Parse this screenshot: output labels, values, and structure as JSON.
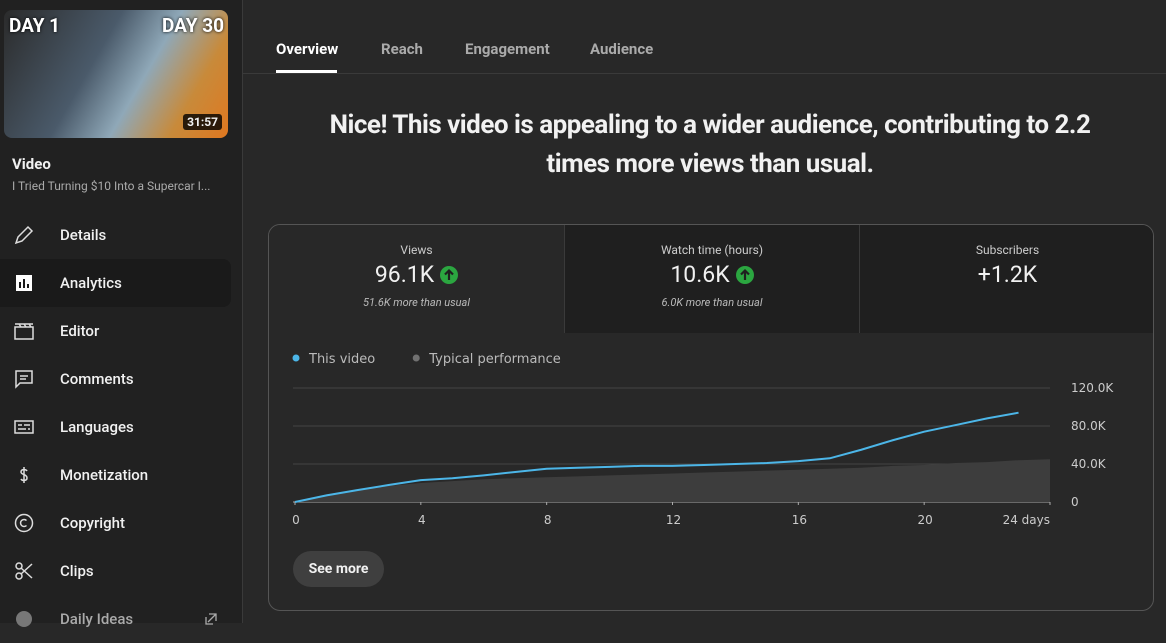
{
  "thumbnail": {
    "left_text": "DAY 1",
    "right_text": "DAY 30",
    "duration": "31:57"
  },
  "sidebar": {
    "label": "Video",
    "video_title": "I Tried Turning $10 Into a Supercar I...",
    "nav": [
      "Details",
      "Analytics",
      "Editor",
      "Comments",
      "Languages",
      "Monetization",
      "Copyright",
      "Clips",
      "Daily Ideas"
    ]
  },
  "tabs": [
    "Overview",
    "Reach",
    "Engagement",
    "Audience"
  ],
  "headline": "Nice! This video is appealing to a wider audience, contributing to 2.2 times more views than usual.",
  "metrics": [
    {
      "label": "Views",
      "value": "96.1K",
      "note": "51.6K more than usual"
    },
    {
      "label": "Watch time (hours)",
      "value": "10.6K",
      "note": "6.0K more than usual"
    },
    {
      "label": "Subscribers",
      "value": "+1.2K"
    }
  ],
  "chart_data": {
    "type": "line",
    "x": [
      0,
      1,
      2,
      3,
      4,
      5,
      6,
      7,
      8,
      9,
      10,
      11,
      12,
      13,
      14,
      15,
      16,
      17,
      18,
      19,
      20,
      21,
      22,
      23,
      24
    ],
    "series": [
      {
        "name": "This video",
        "color": "#4cb6e8",
        "values": [
          0,
          7000,
          12600,
          18000,
          23000,
          25000,
          28000,
          31600,
          35000,
          36000,
          37000,
          38000,
          38000,
          39000,
          40000,
          41000,
          43000,
          46000,
          55000,
          65000,
          74000,
          81000,
          88000,
          94000,
          null
        ]
      },
      {
        "name": "Typical performance",
        "color": "#717171",
        "fill": "#3d3d3d",
        "values": [
          0,
          8000,
          13000,
          17000,
          20000,
          22000,
          24000,
          25000,
          26000,
          27000,
          28000,
          29000,
          30000,
          31000,
          32000,
          33000,
          34000,
          35000,
          36000,
          38000,
          39000,
          41000,
          42000,
          44000,
          45000
        ]
      }
    ],
    "xlim": [
      0,
      24
    ],
    "xticks": [
      0,
      4,
      8,
      12,
      16,
      20,
      {
        "value": 24,
        "label": "24 days"
      }
    ],
    "ylim": [
      0,
      120000
    ],
    "yticks": [
      0,
      {
        "value": 40000,
        "label": "40.0K"
      },
      {
        "value": 80000,
        "label": "80.0K"
      },
      {
        "value": 120000,
        "label": "120.0K"
      }
    ],
    "grid": true
  },
  "button": "See more"
}
